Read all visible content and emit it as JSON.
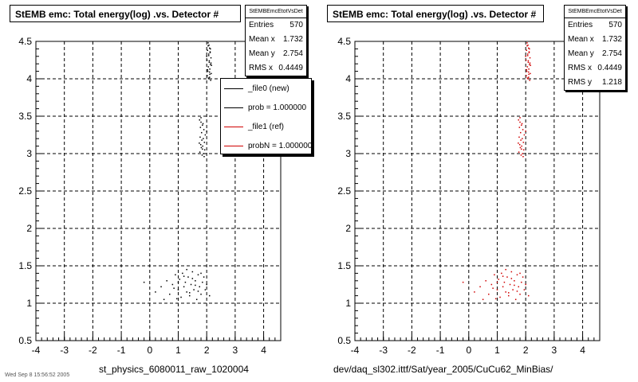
{
  "footer_text": "Wed Sep 8 15:56:52 2005",
  "chart_data": [
    {
      "type": "scatter",
      "title": "StEMB emc: Total energy(log) .vs. Detector #",
      "xlabel": "st_physics_6080011_raw_1020004",
      "ylabel": "",
      "xlim": [
        -4,
        4.6
      ],
      "ylim": [
        0.5,
        4.5
      ],
      "xticks": [
        "-4",
        "-3",
        "-2",
        "-1",
        "0",
        "1",
        "2",
        "3",
        "4"
      ],
      "yticks": [
        "0.5",
        "1",
        "1.5",
        "2",
        "2.5",
        "3",
        "3.5",
        "4",
        "4.5"
      ],
      "grid": true,
      "point_color": "#000000",
      "series": [
        {
          "x": [
            2.05,
            2.08,
            2.1,
            2.03,
            2.12,
            2.07,
            2.15,
            2.01,
            2.09,
            2.13,
            2.06,
            2.11,
            2.04,
            2.16,
            2.02,
            2.1,
            2.08,
            2.14,
            2.05,
            2.12,
            2.0,
            2.09,
            2.17,
            2.03,
            2.11,
            2.06,
            2.13,
            2.07,
            2.15,
            2.1
          ],
          "y": [
            4.48,
            4.45,
            4.41,
            4.38,
            4.35,
            4.31,
            4.28,
            4.25,
            4.22,
            4.19,
            4.16,
            4.13,
            4.1,
            4.07,
            4.04,
            4.02,
            4.0,
            3.98,
            4.44,
            4.36,
            4.3,
            4.24,
            4.18,
            4.12,
            4.06,
            4.01,
            4.4,
            4.33,
            4.21,
            4.09
          ]
        },
        {
          "x": [
            1.75,
            1.8,
            1.85,
            1.78,
            1.9,
            1.82,
            1.95,
            1.77,
            1.88,
            1.83,
            1.92,
            1.79,
            1.86,
            1.81,
            1.93,
            1.76,
            1.89,
            1.84,
            1.91,
            1.87,
            2.0,
            1.74,
            1.85,
            1.8
          ],
          "y": [
            3.45,
            3.42,
            3.38,
            3.35,
            3.32,
            3.28,
            3.25,
            3.22,
            3.2,
            3.18,
            3.15,
            3.12,
            3.1,
            3.08,
            3.05,
            3.02,
            3.0,
            2.98,
            2.96,
            3.4,
            3.3,
            3.14,
            3.06,
            3.48
          ]
        },
        {
          "x": [
            -0.2,
            0.2,
            0.4,
            0.5,
            0.6,
            0.7,
            0.8,
            0.9,
            1.0,
            1.05,
            1.1,
            1.15,
            1.2,
            1.25,
            1.3,
            1.35,
            1.4,
            1.45,
            1.5,
            1.55,
            1.6,
            1.65,
            1.7,
            1.75,
            1.8,
            1.85,
            1.9,
            1.95,
            2.0,
            2.1,
            0.85,
            1.0,
            1.2,
            1.4,
            1.6,
            1.8,
            0.95,
            1.3,
            1.7,
            1.5
          ],
          "y": [
            1.28,
            1.15,
            1.22,
            1.05,
            1.3,
            1.12,
            1.25,
            1.38,
            1.18,
            1.32,
            1.08,
            1.4,
            1.22,
            1.28,
            1.15,
            1.35,
            1.1,
            1.25,
            1.42,
            1.18,
            1.3,
            1.05,
            1.38,
            1.22,
            1.12,
            1.28,
            1.35,
            1.18,
            1.25,
            1.1,
            1.2,
            1.28,
            1.36,
            1.14,
            1.24,
            1.4,
            1.06,
            1.45,
            1.16,
            1.33
          ]
        }
      ],
      "stats": {
        "header": "StEMBEmcEtotVsDet",
        "rows": [
          [
            "Entries",
            "570"
          ],
          [
            "Mean x",
            "1.732"
          ],
          [
            "Mean y",
            "2.754"
          ],
          [
            "RMS x",
            "0.4449"
          ]
        ]
      },
      "legend": [
        {
          "label": "_file0 (new)",
          "color": "#000000"
        },
        {
          "label": "prob = 1.000000",
          "color": "#000000"
        },
        {
          "label": "_file1 (ref)",
          "color": "#d00000"
        },
        {
          "label": "probN = 1.000000",
          "color": "#d00000"
        }
      ]
    },
    {
      "type": "scatter",
      "title": "StEMB emc: Total energy(log) .vs. Detector #",
      "xlabel": "dev/daq_sl302.ittf/Sat/year_2005/CuCu62_MinBias/",
      "ylabel": "",
      "xlim": [
        -4,
        4.6
      ],
      "ylim": [
        0.5,
        4.5
      ],
      "xticks": [
        "-4",
        "-3",
        "-2",
        "-1",
        "0",
        "1",
        "2",
        "3",
        "4"
      ],
      "yticks": [
        "0.5",
        "1",
        "1.5",
        "2",
        "2.5",
        "3",
        "3.5",
        "4",
        "4.5"
      ],
      "grid": true,
      "point_color": "#d00000",
      "series": [
        {
          "x": [
            2.05,
            2.08,
            2.1,
            2.03,
            2.12,
            2.07,
            2.15,
            2.01,
            2.09,
            2.13,
            2.06,
            2.11,
            2.04,
            2.16,
            2.02,
            2.1,
            2.08,
            2.14,
            2.05,
            2.12,
            2.0,
            2.09,
            2.17,
            2.03,
            2.11,
            2.06,
            2.13,
            2.07,
            2.15,
            2.1
          ],
          "y": [
            4.48,
            4.45,
            4.41,
            4.38,
            4.35,
            4.31,
            4.28,
            4.25,
            4.22,
            4.19,
            4.16,
            4.13,
            4.1,
            4.07,
            4.04,
            4.02,
            4.0,
            3.98,
            4.44,
            4.36,
            4.3,
            4.24,
            4.18,
            4.12,
            4.06,
            4.01,
            4.4,
            4.33,
            4.21,
            4.09
          ]
        },
        {
          "x": [
            1.75,
            1.8,
            1.85,
            1.78,
            1.9,
            1.82,
            1.95,
            1.77,
            1.88,
            1.83,
            1.92,
            1.79,
            1.86,
            1.81,
            1.93,
            1.76,
            1.89,
            1.84,
            1.91,
            1.87,
            2.0,
            1.74,
            1.85,
            1.8
          ],
          "y": [
            3.45,
            3.42,
            3.38,
            3.35,
            3.32,
            3.28,
            3.25,
            3.22,
            3.2,
            3.18,
            3.15,
            3.12,
            3.1,
            3.08,
            3.05,
            3.02,
            3.0,
            2.98,
            2.96,
            3.4,
            3.3,
            3.14,
            3.06,
            3.48
          ]
        },
        {
          "x": [
            -0.2,
            0.2,
            0.4,
            0.5,
            0.6,
            0.7,
            0.8,
            0.9,
            1.0,
            1.05,
            1.1,
            1.15,
            1.2,
            1.25,
            1.3,
            1.35,
            1.4,
            1.45,
            1.5,
            1.55,
            1.6,
            1.65,
            1.7,
            1.75,
            1.8,
            1.85,
            1.9,
            1.95,
            2.0,
            2.1,
            0.85,
            1.0,
            1.2,
            1.4,
            1.6,
            1.8,
            0.95,
            1.3,
            1.7,
            1.5
          ],
          "y": [
            1.28,
            1.15,
            1.22,
            1.05,
            1.3,
            1.12,
            1.25,
            1.38,
            1.18,
            1.32,
            1.08,
            1.4,
            1.22,
            1.28,
            1.15,
            1.35,
            1.1,
            1.25,
            1.42,
            1.18,
            1.3,
            1.05,
            1.38,
            1.22,
            1.12,
            1.28,
            1.35,
            1.18,
            1.25,
            1.1,
            1.2,
            1.28,
            1.36,
            1.14,
            1.24,
            1.4,
            1.06,
            1.45,
            1.16,
            1.33
          ]
        }
      ],
      "stats": {
        "header": "StEMBEmcEtotVsDet",
        "rows": [
          [
            "Entries",
            "570"
          ],
          [
            "Mean x",
            "1.732"
          ],
          [
            "Mean y",
            "2.754"
          ],
          [
            "RMS x",
            "0.4449"
          ],
          [
            "RMS y",
            "1.218"
          ]
        ]
      }
    }
  ]
}
